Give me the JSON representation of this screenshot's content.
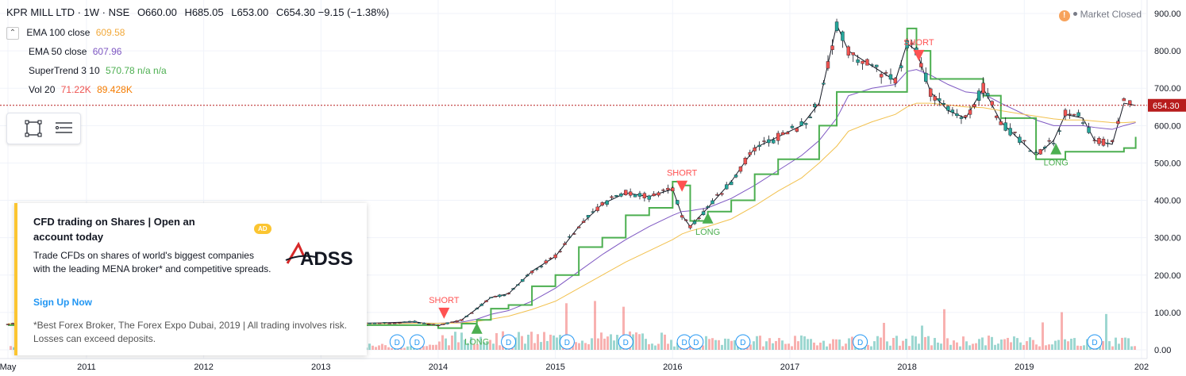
{
  "header": {
    "symbol": "KPR MILL LTD · 1W · NSE",
    "open": "O660.00",
    "high": "H685.05",
    "low": "L653.00",
    "close": "C654.30",
    "change": "−9.15 (−1.38%)"
  },
  "indicators": [
    {
      "label": "EMA 100 close",
      "value": "609.58",
      "color": "#f2a93b"
    },
    {
      "label": "EMA 50 close",
      "value": "607.96",
      "color": "#7e57c2"
    },
    {
      "label": "SuperTrend 3 10",
      "value": "570.78 n/a n/a",
      "color": "#4caf50"
    },
    {
      "label": "Vol 20",
      "value": "71.22K",
      "value2": "89.428K",
      "color": "#ef5350",
      "color2": "#f57c00"
    }
  ],
  "market_status": "Market Closed",
  "current_price_label": "654.30",
  "ad": {
    "title": "CFD trading on Shares | Open an account today",
    "badge": "AD",
    "body": "Trade CFDs on shares of world's biggest companies with the leading MENA broker* and competitive spreads.",
    "link": "Sign Up Now",
    "disclaimer": "*Best Forex Broker, The Forex Expo Dubai, 2019 | All trading involves risk. Losses can exceed deposits.",
    "brand": "ADSS"
  },
  "colors": {
    "up": "#26a69a",
    "down": "#ef5350",
    "st_up": "#4caf50",
    "st_down": "#ff5252",
    "ema100": "#f2c14e",
    "ema50": "#7e57c2"
  },
  "chart_data": {
    "type": "line",
    "title": "KPR MILL LTD · 1W · NSE",
    "x_tick_labels": [
      "May",
      "2011",
      "2012",
      "2013",
      "2014",
      "2015",
      "2016",
      "2017",
      "2018",
      "2019",
      "202"
    ],
    "x_tick_years": [
      2010.33,
      2011,
      2012,
      2013,
      2014,
      2015,
      2016,
      2017,
      2018,
      2019,
      2020
    ],
    "y_tick_labels": [
      "0.00",
      "100.00",
      "200.00",
      "300.00",
      "400.00",
      "500.00",
      "600.00",
      "700.00",
      "800.00",
      "900.00"
    ],
    "ylim": [
      0,
      900
    ],
    "x": [
      2010.33,
      2010.75,
      2011.0,
      2011.5,
      2012.0,
      2012.5,
      2013.0,
      2013.5,
      2013.8,
      2014.0,
      2014.2,
      2014.33,
      2014.45,
      2014.6,
      2014.8,
      2015.0,
      2015.2,
      2015.4,
      2015.6,
      2015.8,
      2016.0,
      2016.08,
      2016.15,
      2016.3,
      2016.5,
      2016.7,
      2016.9,
      2017.1,
      2017.25,
      2017.4,
      2017.5,
      2017.7,
      2017.9,
      2018.0,
      2018.08,
      2018.2,
      2018.35,
      2018.5,
      2018.65,
      2018.8,
      2019.0,
      2019.1,
      2019.25,
      2019.35,
      2019.5,
      2019.6,
      2019.75,
      2019.85,
      2019.95
    ],
    "series": [
      {
        "name": "Price",
        "values": [
          70,
          72,
          72,
          70,
          70,
          71,
          70,
          72,
          75,
          65,
          80,
          110,
          140,
          150,
          210,
          250,
          330,
          390,
          420,
          410,
          430,
          360,
          330,
          380,
          450,
          540,
          570,
          600,
          660,
          870,
          800,
          760,
          720,
          820,
          800,
          690,
          640,
          620,
          700,
          610,
          550,
          520,
          560,
          630,
          620,
          560,
          550,
          660,
          654
        ]
      },
      {
        "name": "EMA 50 close",
        "values": [
          70,
          70,
          71,
          71,
          70,
          70,
          70,
          71,
          72,
          71,
          74,
          82,
          95,
          105,
          130,
          165,
          210,
          255,
          295,
          330,
          360,
          370,
          372,
          380,
          405,
          440,
          480,
          520,
          560,
          620,
          680,
          700,
          710,
          745,
          750,
          735,
          710,
          690,
          685,
          660,
          630,
          615,
          600,
          600,
          600,
          595,
          590,
          600,
          608
        ]
      },
      {
        "name": "EMA 100 close",
        "values": [
          70,
          70,
          70,
          70,
          70,
          70,
          70,
          70,
          71,
          71,
          72,
          76,
          82,
          90,
          108,
          130,
          165,
          200,
          235,
          265,
          295,
          310,
          318,
          330,
          350,
          385,
          425,
          460,
          500,
          545,
          585,
          610,
          630,
          650,
          660,
          660,
          655,
          650,
          648,
          640,
          630,
          625,
          618,
          615,
          615,
          612,
          608,
          608,
          610
        ]
      },
      {
        "name": "SuperTrend 3 10",
        "values": [
          66,
          66,
          66,
          66,
          66,
          66,
          66,
          66,
          66,
          58,
          70,
          80,
          110,
          120,
          170,
          200,
          275,
          300,
          360,
          380,
          450,
          440,
          345,
          370,
          400,
          470,
          510,
          510,
          600,
          690,
          690,
          690,
          690,
          860,
          800,
          725,
          725,
          725,
          680,
          620,
          620,
          510,
          510,
          530,
          530,
          530,
          530,
          540,
          570
        ]
      }
    ],
    "signals": [
      {
        "label": "SHORT",
        "x": 2014.05,
        "y": 100
      },
      {
        "label": "LONG",
        "x": 2014.33,
        "y": 60
      },
      {
        "label": "SHORT",
        "x": 2016.08,
        "y": 440
      },
      {
        "label": "LONG",
        "x": 2016.3,
        "y": 355
      },
      {
        "label": "SHORT",
        "x": 2018.1,
        "y": 790
      },
      {
        "label": "LONG",
        "x": 2019.27,
        "y": 540
      }
    ],
    "dividend_markers_x": [
      2013.65,
      2013.82,
      2014.6,
      2015.1,
      2015.6,
      2016.1,
      2016.2,
      2016.6,
      2017.6,
      2019.6
    ]
  }
}
